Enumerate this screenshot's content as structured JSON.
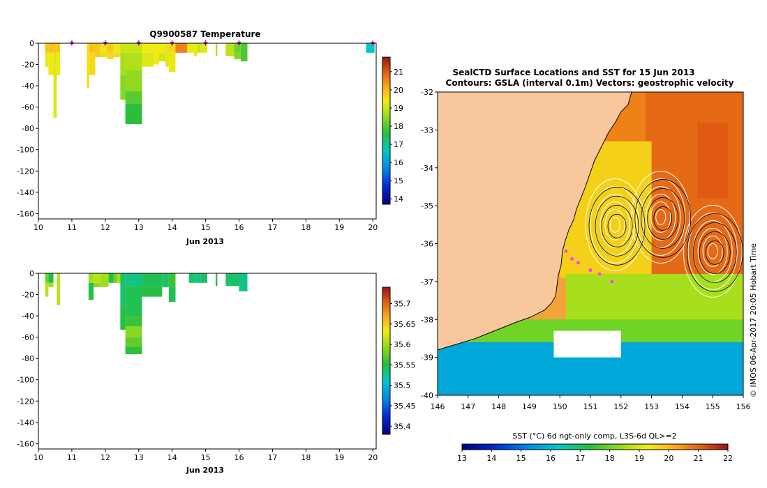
{
  "chart_data": [
    {
      "type": "heatmap",
      "title": "Q9900587  Temperature",
      "xlabel": "Jun 2013",
      "ylabel": "",
      "xlim": [
        10,
        20.1
      ],
      "ylim": [
        -165,
        0
      ],
      "x_ticks": [
        "10",
        "11",
        "12",
        "13",
        "14",
        "15",
        "16",
        "17",
        "18",
        "19",
        "20"
      ],
      "y_ticks": [
        "0",
        "-20",
        "-40",
        "-60",
        "-80",
        "-100",
        "-120",
        "-140",
        "-160"
      ],
      "profile_markers_day": [
        11,
        12,
        13,
        14,
        15,
        16,
        20
      ],
      "colorbar": {
        "min": 13.7,
        "max": 21.8,
        "ticks": [
          "14",
          "15",
          "16",
          "17",
          "18",
          "19",
          "20",
          "21"
        ]
      },
      "profiles": [
        {
          "x0": 10.2,
          "x1": 10.3,
          "segments": [
            {
              "d0": 0,
              "d1": 9,
              "v": 19.8
            },
            {
              "d0": 9,
              "d1": 22,
              "v": 19.3
            }
          ]
        },
        {
          "x0": 10.3,
          "x1": 10.45,
          "segments": [
            {
              "d0": 0,
              "d1": 9,
              "v": 19.9
            },
            {
              "d0": 9,
              "d1": 30,
              "v": 19.4
            }
          ]
        },
        {
          "x0": 10.45,
          "x1": 10.55,
          "segments": [
            {
              "d0": 0,
              "d1": 9,
              "v": 19.8
            },
            {
              "d0": 9,
              "d1": 70,
              "v": 19.2
            }
          ]
        },
        {
          "x0": 10.55,
          "x1": 10.65,
          "segments": [
            {
              "d0": 0,
              "d1": 9,
              "v": 19.8
            },
            {
              "d0": 9,
              "d1": 30,
              "v": 19.3
            }
          ]
        },
        {
          "x0": 11.45,
          "x1": 11.52,
          "segments": [
            {
              "d0": 0,
              "d1": 42,
              "v": 19.5
            }
          ]
        },
        {
          "x0": 11.52,
          "x1": 11.7,
          "segments": [
            {
              "d0": 0,
              "d1": 9,
              "v": 19.9
            },
            {
              "d0": 9,
              "d1": 30,
              "v": 19.6
            }
          ]
        },
        {
          "x0": 11.7,
          "x1": 11.85,
          "segments": [
            {
              "d0": 0,
              "d1": 13,
              "v": 19.8
            }
          ]
        },
        {
          "x0": 11.85,
          "x1": 12.05,
          "segments": [
            {
              "d0": 0,
              "d1": 9,
              "v": 19.3
            },
            {
              "d0": 9,
              "d1": 13,
              "v": 19.6
            }
          ]
        },
        {
          "x0": 12.05,
          "x1": 12.25,
          "segments": [
            {
              "d0": 0,
              "d1": 9,
              "v": 19.8
            },
            {
              "d0": 9,
              "d1": 15,
              "v": 19.6
            }
          ]
        },
        {
          "x0": 12.25,
          "x1": 12.45,
          "segments": [
            {
              "d0": 0,
              "d1": 9,
              "v": 19.3
            },
            {
              "d0": 9,
              "d1": 13,
              "v": 19.6
            }
          ]
        },
        {
          "x0": 12.45,
          "x1": 12.6,
          "segments": [
            {
              "d0": 0,
              "d1": 9,
              "v": 19.0
            },
            {
              "d0": 9,
              "d1": 30,
              "v": 18.7
            },
            {
              "d0": 30,
              "d1": 53,
              "v": 18.4
            }
          ]
        },
        {
          "x0": 12.6,
          "x1": 13.1,
          "segments": [
            {
              "d0": 0,
              "d1": 9,
              "v": 19.0
            },
            {
              "d0": 9,
              "d1": 25,
              "v": 18.8
            },
            {
              "d0": 25,
              "d1": 45,
              "v": 18.5
            },
            {
              "d0": 45,
              "d1": 57,
              "v": 18.0
            },
            {
              "d0": 57,
              "d1": 76,
              "v": 17.6
            }
          ]
        },
        {
          "x0": 13.1,
          "x1": 13.45,
          "segments": [
            {
              "d0": 0,
              "d1": 9,
              "v": 19.4
            },
            {
              "d0": 9,
              "d1": 22,
              "v": 19.2
            }
          ]
        },
        {
          "x0": 13.45,
          "x1": 13.6,
          "segments": [
            {
              "d0": 0,
              "d1": 20,
              "v": 19.4
            }
          ]
        },
        {
          "x0": 13.6,
          "x1": 13.8,
          "segments": [
            {
              "d0": 0,
              "d1": 9,
              "v": 19.4
            },
            {
              "d0": 9,
              "d1": 17,
              "v": 19.1
            }
          ]
        },
        {
          "x0": 13.8,
          "x1": 13.9,
          "segments": [
            {
              "d0": 0,
              "d1": 22,
              "v": 19.2
            }
          ]
        },
        {
          "x0": 13.9,
          "x1": 14.1,
          "segments": [
            {
              "d0": 0,
              "d1": 9,
              "v": 19.6
            },
            {
              "d0": 9,
              "d1": 27,
              "v": 19.3
            }
          ]
        },
        {
          "x0": 14.1,
          "x1": 14.45,
          "segments": [
            {
              "d0": 0,
              "d1": 9,
              "v": 20.6
            }
          ]
        },
        {
          "x0": 14.45,
          "x1": 14.65,
          "segments": [
            {
              "d0": 0,
              "d1": 9,
              "v": 19.3
            }
          ]
        },
        {
          "x0": 14.65,
          "x1": 14.75,
          "segments": [
            {
              "d0": 0,
              "d1": 12,
              "v": 19.3
            }
          ]
        },
        {
          "x0": 14.75,
          "x1": 14.85,
          "segments": [
            {
              "d0": 0,
              "d1": 9,
              "v": 19.0
            }
          ]
        },
        {
          "x0": 14.85,
          "x1": 15.05,
          "segments": [
            {
              "d0": 0,
              "d1": 9,
              "v": 19.2
            }
          ]
        },
        {
          "x0": 15.3,
          "x1": 15.35,
          "segments": [
            {
              "d0": 0,
              "d1": 12,
              "v": 18.8
            }
          ]
        },
        {
          "x0": 15.6,
          "x1": 15.85,
          "segments": [
            {
              "d0": 0,
              "d1": 12,
              "v": 18.9
            }
          ]
        },
        {
          "x0": 15.85,
          "x1": 16.05,
          "segments": [
            {
              "d0": 0,
              "d1": 9,
              "v": 18.2
            },
            {
              "d0": 9,
              "d1": 15,
              "v": 18.4
            }
          ]
        },
        {
          "x0": 16.05,
          "x1": 16.25,
          "segments": [
            {
              "d0": 0,
              "d1": 17,
              "v": 17.9
            }
          ]
        },
        {
          "x0": 19.8,
          "x1": 20.05,
          "segments": [
            {
              "d0": 0,
              "d1": 9,
              "v": 16.6
            }
          ]
        }
      ]
    },
    {
      "type": "heatmap",
      "title": "",
      "xlabel": "Jun 2013",
      "ylabel": "",
      "xlim": [
        10,
        20.1
      ],
      "ylim": [
        -165,
        0
      ],
      "x_ticks": [
        "10",
        "11",
        "12",
        "13",
        "14",
        "15",
        "16",
        "17",
        "18",
        "19",
        "20"
      ],
      "y_ticks": [
        "0",
        "-20",
        "-40",
        "-60",
        "-80",
        "-100",
        "-120",
        "-140",
        "-160"
      ],
      "colorbar": {
        "min": 35.38,
        "max": 35.74,
        "ticks": [
          "35.4",
          "35.45",
          "35.5",
          "35.55",
          "35.6",
          "35.65",
          "35.7"
        ]
      },
      "profiles": [
        {
          "x0": 10.2,
          "x1": 10.3,
          "segments": [
            {
              "d0": 0,
              "d1": 9,
              "v": 35.58
            },
            {
              "d0": 9,
              "d1": 22,
              "v": 35.61
            }
          ]
        },
        {
          "x0": 10.3,
          "x1": 10.45,
          "segments": [
            {
              "d0": 0,
              "d1": 9,
              "v": 35.55
            },
            {
              "d0": 9,
              "d1": 13,
              "v": 35.6
            }
          ]
        },
        {
          "x0": 10.55,
          "x1": 10.65,
          "segments": [
            {
              "d0": 0,
              "d1": 30,
              "v": 35.61
            }
          ]
        },
        {
          "x0": 11.5,
          "x1": 11.65,
          "segments": [
            {
              "d0": 0,
              "d1": 9,
              "v": 35.6
            },
            {
              "d0": 9,
              "d1": 25,
              "v": 35.55
            }
          ]
        },
        {
          "x0": 11.65,
          "x1": 11.85,
          "segments": [
            {
              "d0": 0,
              "d1": 9,
              "v": 35.61
            },
            {
              "d0": 9,
              "d1": 13,
              "v": 35.59
            }
          ]
        },
        {
          "x0": 11.85,
          "x1": 12.1,
          "segments": [
            {
              "d0": 0,
              "d1": 13,
              "v": 35.6
            }
          ]
        },
        {
          "x0": 12.1,
          "x1": 12.25,
          "segments": [
            {
              "d0": 0,
              "d1": 9,
              "v": 35.55
            }
          ]
        },
        {
          "x0": 12.25,
          "x1": 12.35,
          "segments": [
            {
              "d0": 0,
              "d1": 9,
              "v": 35.58
            }
          ]
        },
        {
          "x0": 12.35,
          "x1": 12.45,
          "segments": [
            {
              "d0": 0,
              "d1": 9,
              "v": 35.6
            }
          ]
        },
        {
          "x0": 12.45,
          "x1": 12.6,
          "segments": [
            {
              "d0": 0,
              "d1": 30,
              "v": 35.54
            },
            {
              "d0": 30,
              "d1": 53,
              "v": 35.55
            }
          ]
        },
        {
          "x0": 12.6,
          "x1": 13.1,
          "segments": [
            {
              "d0": 0,
              "d1": 12,
              "v": 35.53
            },
            {
              "d0": 12,
              "d1": 40,
              "v": 35.545
            },
            {
              "d0": 40,
              "d1": 50,
              "v": 35.56
            },
            {
              "d0": 50,
              "d1": 60,
              "v": 35.59
            },
            {
              "d0": 60,
              "d1": 69,
              "v": 35.575
            },
            {
              "d0": 69,
              "d1": 76,
              "v": 35.555
            }
          ]
        },
        {
          "x0": 13.1,
          "x1": 13.7,
          "segments": [
            {
              "d0": 0,
              "d1": 13,
              "v": 35.545
            },
            {
              "d0": 13,
              "d1": 22,
              "v": 35.55
            }
          ]
        },
        {
          "x0": 13.7,
          "x1": 13.9,
          "segments": [
            {
              "d0": 0,
              "d1": 13,
              "v": 35.54
            }
          ]
        },
        {
          "x0": 13.9,
          "x1": 14.1,
          "segments": [
            {
              "d0": 0,
              "d1": 13,
              "v": 35.56
            },
            {
              "d0": 13,
              "d1": 27,
              "v": 35.545
            }
          ]
        },
        {
          "x0": 14.5,
          "x1": 14.7,
          "segments": [
            {
              "d0": 0,
              "d1": 9,
              "v": 35.54
            }
          ]
        },
        {
          "x0": 14.7,
          "x1": 14.85,
          "segments": [
            {
              "d0": 0,
              "d1": 9,
              "v": 35.53
            }
          ]
        },
        {
          "x0": 14.85,
          "x1": 15.05,
          "segments": [
            {
              "d0": 0,
              "d1": 9,
              "v": 35.54
            }
          ]
        },
        {
          "x0": 15.3,
          "x1": 15.35,
          "segments": [
            {
              "d0": 0,
              "d1": 12,
              "v": 35.55
            }
          ]
        },
        {
          "x0": 15.6,
          "x1": 16.0,
          "segments": [
            {
              "d0": 0,
              "d1": 12,
              "v": 35.54
            }
          ]
        },
        {
          "x0": 16.0,
          "x1": 16.25,
          "segments": [
            {
              "d0": 0,
              "d1": 17,
              "v": 35.53
            }
          ]
        }
      ]
    },
    {
      "type": "heatmap",
      "title": "SealCTD Surface Locations and SST for 15 Jun 2013",
      "subtitle": "Contours: GSLA (interval 0.1m)  Vectors: geostrophic velocity",
      "xlabel": "",
      "ylabel": "",
      "xlim": [
        146,
        156
      ],
      "ylim": [
        -40,
        -32
      ],
      "x_ticks": [
        "146",
        "147",
        "148",
        "149",
        "150",
        "151",
        "152",
        "153",
        "154",
        "155",
        "156"
      ],
      "y_ticks": [
        "-32",
        "-33",
        "-34",
        "-35",
        "-36",
        "-37",
        "-38",
        "-39",
        "-40"
      ],
      "land_color": "#f8c89c",
      "credit": "© IMOS 06-Apr-2017 20:05 Hobart Time",
      "colorbar": {
        "label": "SST (°C) 6d ngt-only comp, L3S-6d QL>=2",
        "min": 13,
        "max": 22,
        "ticks": [
          "13",
          "14",
          "15",
          "16",
          "17",
          "18",
          "19",
          "20",
          "21",
          "22"
        ]
      },
      "eddy_centers": [
        {
          "lon": 151.8,
          "lat": -35.5
        },
        {
          "lon": 153.3,
          "lat": -35.3
        },
        {
          "lon": 155.0,
          "lat": -36.2
        }
      ],
      "seal_locations": [
        {
          "lon": 150.2,
          "lat": -36.2
        },
        {
          "lon": 150.4,
          "lat": -36.4
        },
        {
          "lon": 150.6,
          "lat": -36.5
        },
        {
          "lon": 151.0,
          "lat": -36.7
        },
        {
          "lon": 151.3,
          "lat": -36.8
        },
        {
          "lon": 151.7,
          "lat": -37.0
        }
      ]
    }
  ]
}
